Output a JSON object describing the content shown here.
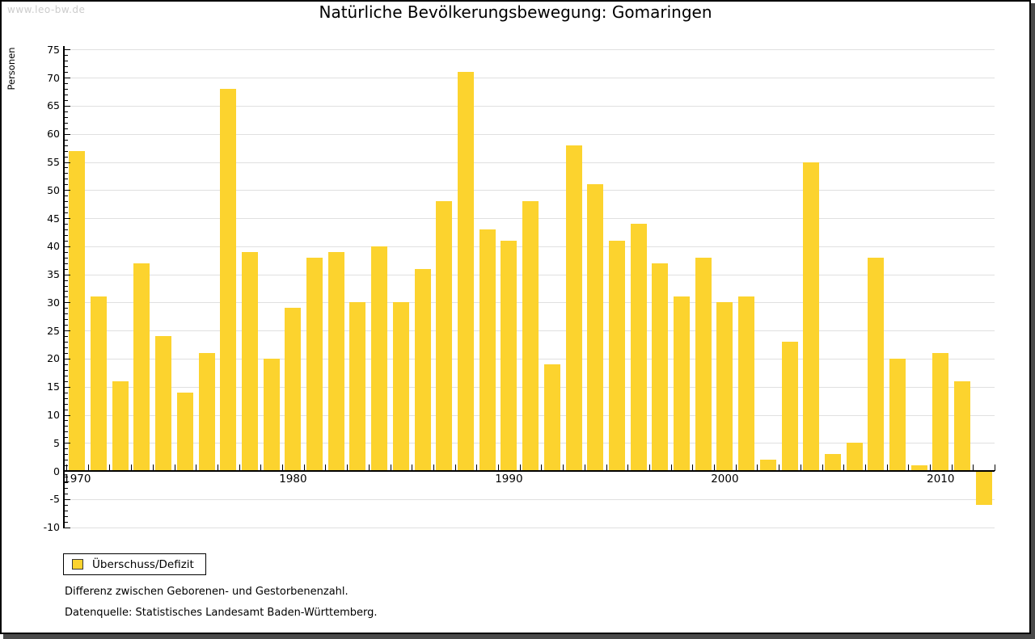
{
  "watermark": "www.leo-bw.de",
  "title": "Natürliche Bevölkerungsbewegung: Gomaringen",
  "y_axis": {
    "label": "Personen",
    "min": -10,
    "max": 75,
    "major_tick_step": 5,
    "minor_tick_step": 1,
    "tick_labels": [
      "75",
      "70",
      "65",
      "60",
      "55",
      "50",
      "45",
      "40",
      "35",
      "30",
      "25",
      "20",
      "15",
      "10",
      "5",
      "0",
      "-5",
      "-10"
    ]
  },
  "x_axis": {
    "tick_labels": [
      "1970",
      "1980",
      "1990",
      "2000",
      "2010"
    ]
  },
  "legend": {
    "label": "Überschuss/Defizit"
  },
  "footnotes": [
    "Differenz zwischen Geborenen- und Gestorbenenzahl.",
    "Datenquelle: Statistisches Landesamt Baden-Württemberg."
  ],
  "colors": {
    "bar": "#FCD32E",
    "grid": "#e0e0e0",
    "axis": "#000000",
    "watermark": "#cccccc",
    "frame_shadow": "#4a4a4a"
  },
  "chart_data": {
    "type": "bar",
    "title": "Natürliche Bevölkerungsbewegung: Gomaringen",
    "series_name": "Überschuss/Defizit",
    "xlabel": "",
    "ylabel": "Personen",
    "ylim": [
      -10,
      75
    ],
    "grid": true,
    "legend_position": "bottom-left",
    "x": [
      1970,
      1971,
      1972,
      1973,
      1974,
      1975,
      1976,
      1977,
      1978,
      1979,
      1980,
      1981,
      1982,
      1983,
      1984,
      1985,
      1986,
      1987,
      1988,
      1989,
      1990,
      1991,
      1992,
      1993,
      1994,
      1995,
      1996,
      1997,
      1998,
      1999,
      2000,
      2001,
      2002,
      2003,
      2004,
      2005,
      2006,
      2007,
      2008,
      2009,
      2010,
      2011,
      2012
    ],
    "values": [
      57,
      31,
      16,
      37,
      24,
      14,
      21,
      68,
      39,
      20,
      29,
      38,
      39,
      30,
      40,
      30,
      36,
      48,
      71,
      43,
      41,
      48,
      19,
      58,
      51,
      41,
      44,
      37,
      31,
      38,
      30,
      31,
      2,
      23,
      55,
      3,
      5,
      38,
      20,
      1,
      21,
      16,
      -6
    ]
  }
}
